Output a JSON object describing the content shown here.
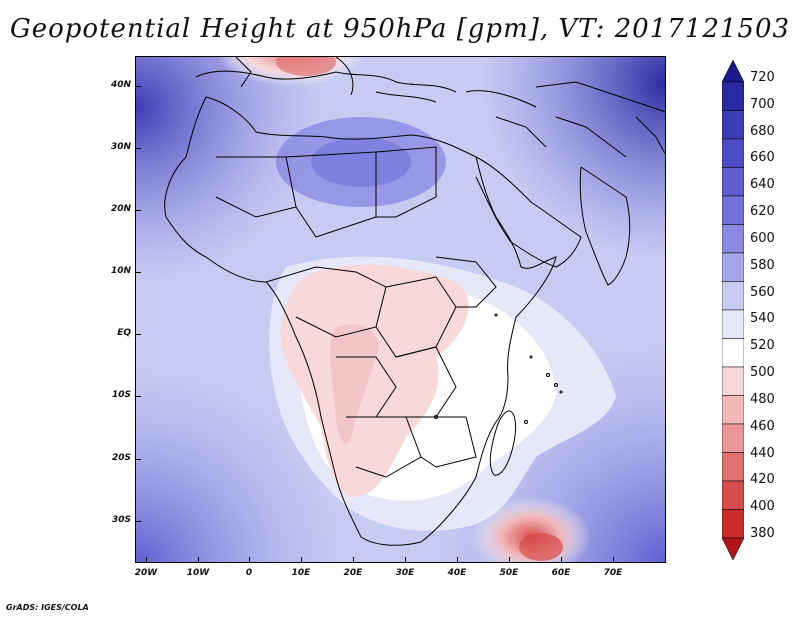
{
  "title": "Geopotential Height at 950hPa [gpm], VT: 2017121503",
  "credit": "GrADS: IGES/COLA",
  "y_ticks": [
    "40N",
    "30N",
    "20N",
    "10N",
    "EQ",
    "10S",
    "20S",
    "30S"
  ],
  "x_ticks": [
    "20W",
    "10W",
    "0",
    "10E",
    "20E",
    "30E",
    "40E",
    "50E",
    "60E",
    "70E"
  ],
  "colorbar": {
    "labels": [
      "720",
      "700",
      "680",
      "660",
      "640",
      "620",
      "600",
      "580",
      "560",
      "540",
      "520",
      "500",
      "480",
      "460",
      "440",
      "420",
      "400",
      "380"
    ],
    "colors": [
      "#1a1a8c",
      "#2a2aa0",
      "#3c3cb4",
      "#4c4cc4",
      "#5e5ed0",
      "#7272da",
      "#8a8ae2",
      "#a4a8ea",
      "#c6cbf2",
      "#e6e8fa",
      "#ffffff",
      "#f8d8d8",
      "#f2b8b8",
      "#ea9696",
      "#e07070",
      "#d64c4c",
      "#c82c2c",
      "#b01414"
    ]
  }
}
